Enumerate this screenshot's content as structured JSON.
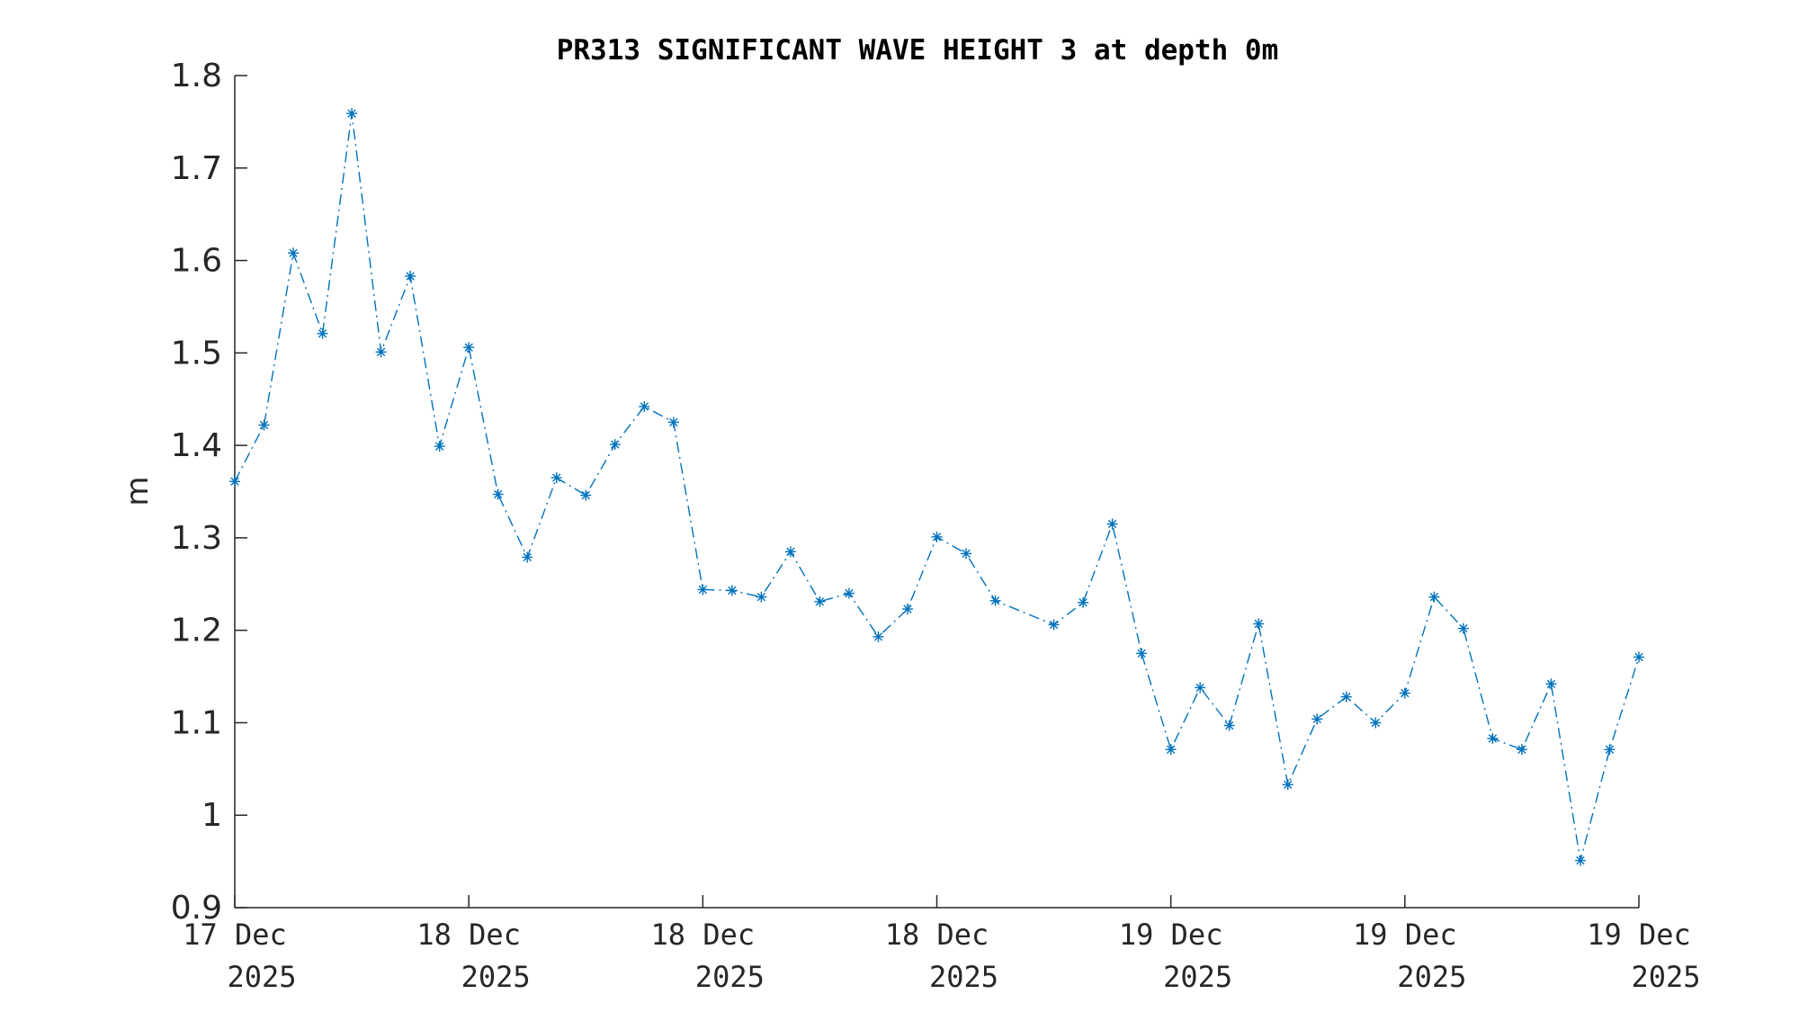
{
  "chart_data": {
    "type": "line",
    "title": "PR313 SIGNIFICANT WAVE HEIGHT 3 at depth 0m",
    "xlabel": "",
    "ylabel": "m",
    "ylim": [
      0.9,
      1.8
    ],
    "yticks": [
      "0.9",
      "1",
      "1.1",
      "1.2",
      "1.3",
      "1.4",
      "1.5",
      "1.6",
      "1.7",
      "1.8"
    ],
    "xticks": [
      {
        "line1": "17 Dec",
        "line2": "2025"
      },
      {
        "line1": "18 Dec",
        "line2": "2025"
      },
      {
        "line1": "18 Dec",
        "line2": "2025"
      },
      {
        "line1": "18 Dec",
        "line2": "2025"
      },
      {
        "line1": "19 Dec",
        "line2": "2025"
      },
      {
        "line1": "19 Dec",
        "line2": "2025"
      },
      {
        "line1": "19 Dec",
        "line2": "2025"
      }
    ],
    "xlim_hours": [
      0,
      48
    ],
    "grid": false,
    "colors": {
      "series": "#0072BD",
      "axis": "#262626",
      "title": "#000000"
    },
    "series": [
      {
        "marker": "asterisk",
        "line_style": "dash-dot",
        "x_hours": [
          0,
          1,
          2,
          3,
          4,
          5,
          6,
          7,
          8,
          9,
          10,
          11,
          12,
          13,
          14,
          15,
          16,
          17,
          18,
          19,
          20,
          21,
          22,
          23,
          24,
          25,
          26,
          28,
          29,
          30,
          31,
          32,
          33,
          34,
          35,
          36,
          37,
          38,
          39,
          40,
          41,
          42,
          43,
          44,
          45,
          46,
          47,
          48
        ],
        "values": [
          1.361,
          1.422,
          1.608,
          1.521,
          1.759,
          1.501,
          1.583,
          1.399,
          1.506,
          1.347,
          1.279,
          1.365,
          1.346,
          1.401,
          1.442,
          1.425,
          1.244,
          1.243,
          1.236,
          1.285,
          1.231,
          1.24,
          1.193,
          1.223,
          1.301,
          1.283,
          1.232,
          1.206,
          1.23,
          1.315,
          1.175,
          1.071,
          1.138,
          1.097,
          1.207,
          1.033,
          1.104,
          1.128,
          1.1,
          1.132,
          1.236,
          1.202,
          1.083,
          1.071,
          1.142,
          0.951,
          1.071,
          1.171
        ]
      }
    ]
  }
}
